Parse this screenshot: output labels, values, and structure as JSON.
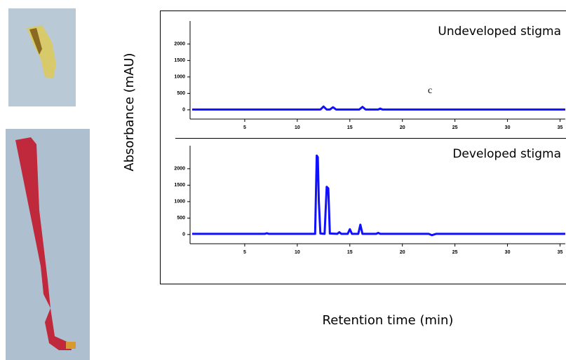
{
  "figure": {
    "y_label": "Absorbance (mAU)",
    "x_label": "Retention time (min)"
  },
  "chart_data": [
    {
      "type": "line",
      "title": "Undeveloped stigma",
      "annotation": "c",
      "x": [
        0,
        12.2,
        12.5,
        12.8,
        13.1,
        13.4,
        13.7,
        15.9,
        16.2,
        16.5,
        17.7,
        17.9,
        18.1,
        35.5
      ],
      "series": [
        {
          "color": "#1010ff",
          "values": [
            10,
            10,
            100,
            10,
            10,
            80,
            10,
            10,
            90,
            10,
            10,
            40,
            10,
            10
          ]
        }
      ],
      "xlim": [
        0,
        35.5
      ],
      "xticks": [
        5,
        10,
        15,
        20,
        25,
        30,
        35
      ],
      "ylim": [
        -280,
        2700
      ],
      "yticks": [
        0,
        500,
        1000,
        1500,
        2000
      ]
    },
    {
      "type": "line",
      "title": "Developed stigma",
      "x": [
        0,
        6.9,
        7.1,
        7.3,
        11.7,
        11.85,
        11.95,
        12.05,
        12.2,
        12.6,
        12.8,
        12.95,
        13.1,
        13.8,
        14.0,
        14.2,
        14.8,
        15.0,
        15.2,
        15.8,
        16.0,
        16.2,
        17.5,
        17.7,
        17.9,
        22.5,
        22.8,
        23.2,
        35.5
      ],
      "series": [
        {
          "color": "#1010ff",
          "values": [
            20,
            20,
            40,
            20,
            20,
            2400,
            2350,
            1000,
            30,
            20,
            1450,
            1400,
            30,
            20,
            70,
            20,
            20,
            160,
            20,
            20,
            300,
            20,
            20,
            50,
            20,
            20,
            -20,
            20,
            20
          ]
        }
      ],
      "xlim": [
        0,
        35.5
      ],
      "xticks": [
        5,
        10,
        15,
        20,
        25,
        30,
        35
      ],
      "ylim": [
        -280,
        2700
      ],
      "yticks": [
        0,
        500,
        1000,
        1500,
        2000
      ]
    }
  ]
}
